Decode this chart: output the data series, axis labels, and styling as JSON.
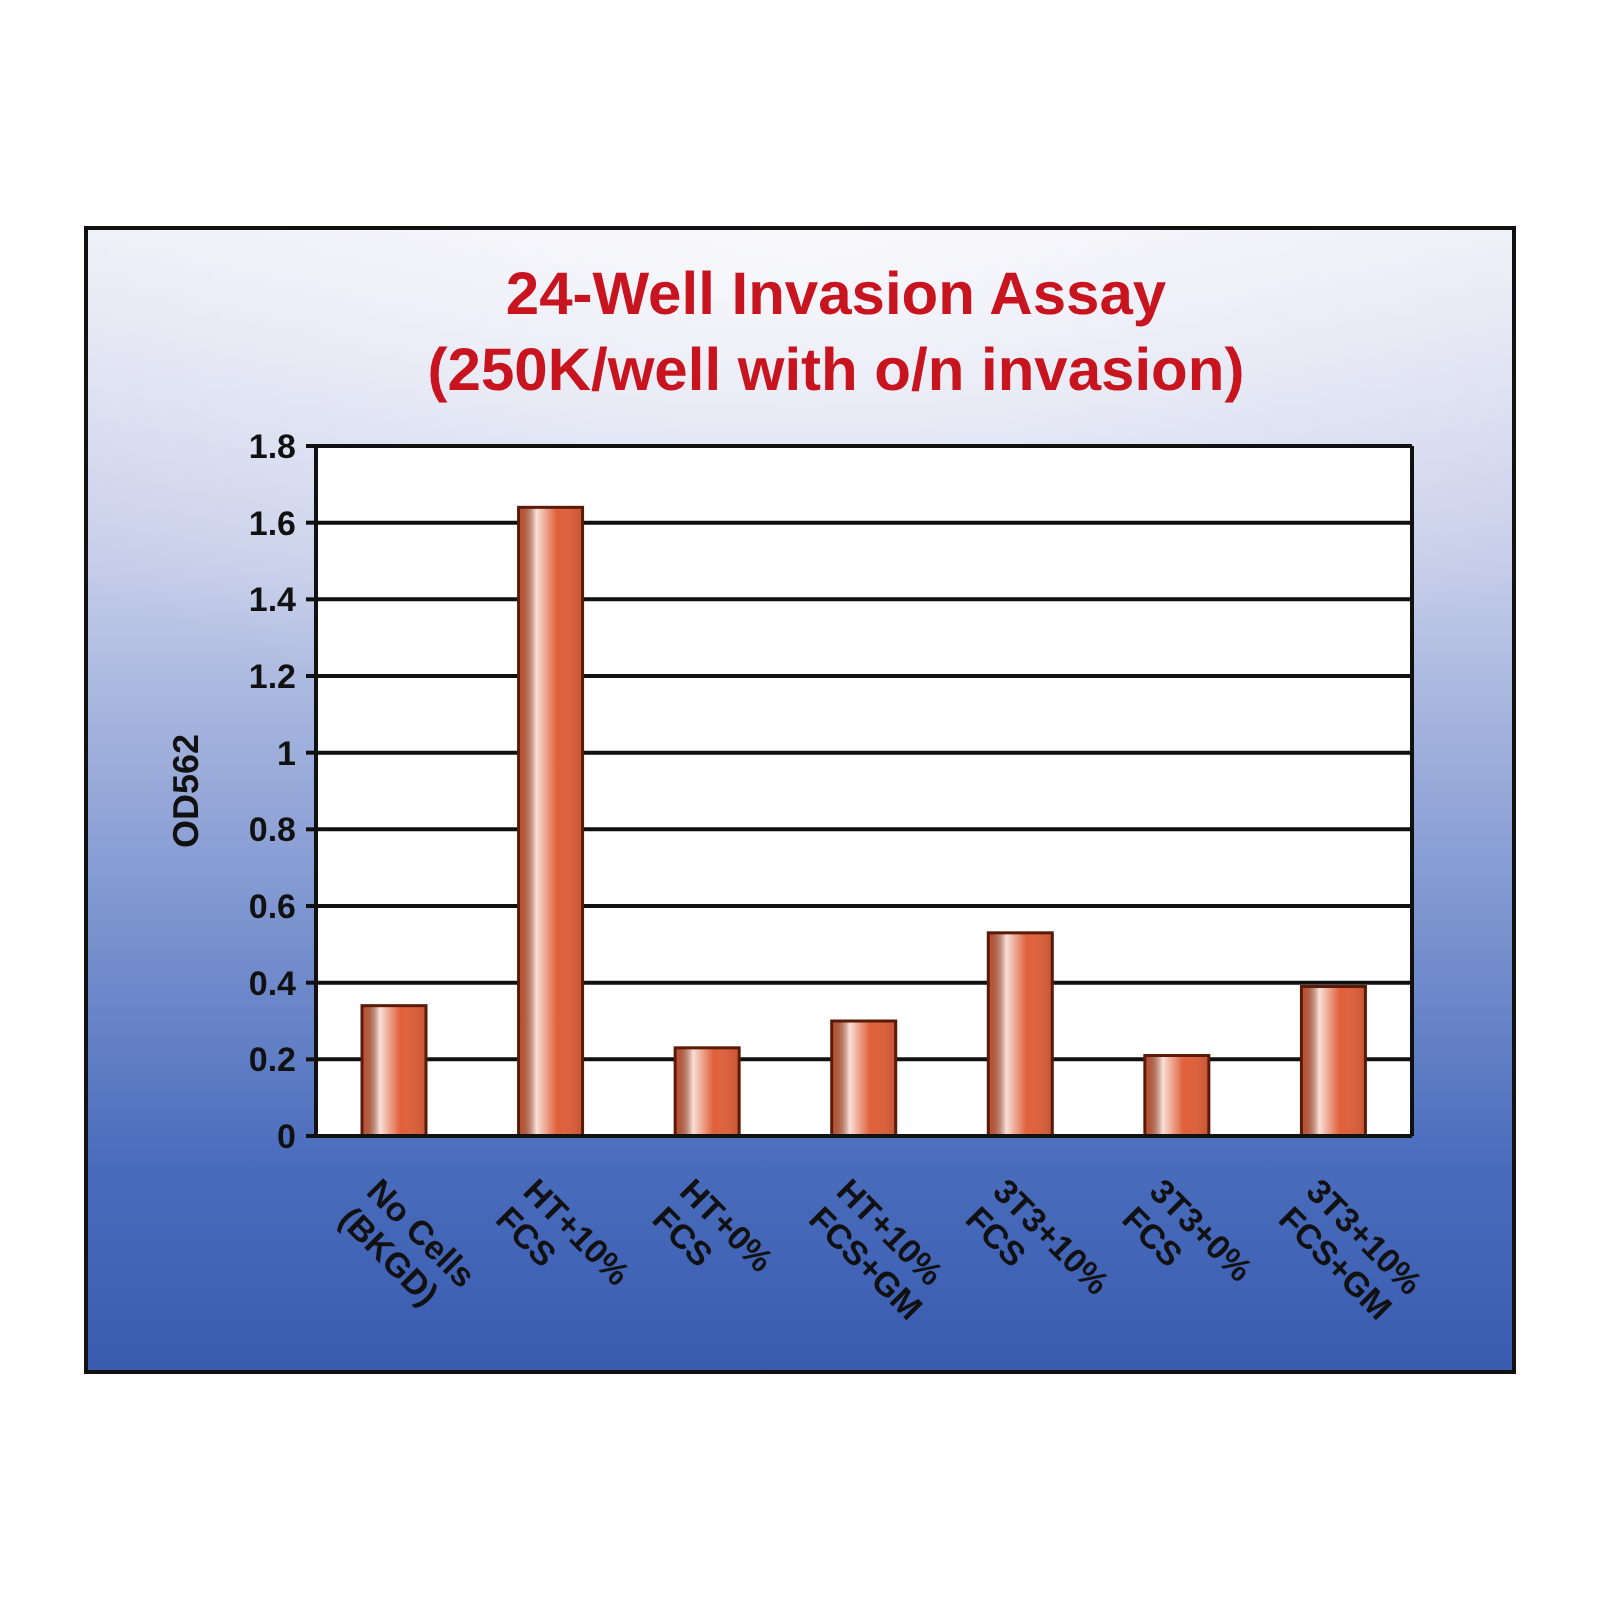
{
  "chart_data": {
    "type": "bar",
    "title": "24-Well Invasion Assay",
    "subtitle": "(250K/well with o/n invasion)",
    "ylabel": "OD562",
    "categories": [
      "No Cells\n(BKGD)",
      "HT+10%\nFCS",
      "HT+0%\nFCS",
      "HT+10%\nFCS+GM",
      "3T3+10%\nFCS",
      "3T3+0%\nFCS",
      "3T3+10%\nFCS+GM"
    ],
    "values": [
      0.34,
      1.64,
      0.23,
      0.3,
      0.53,
      0.21,
      0.39
    ],
    "color": "#e0603a",
    "ylim": [
      0,
      1.8
    ],
    "yticks": [
      0,
      0.2,
      0.4,
      0.6,
      0.8,
      1,
      1.2,
      1.4,
      1.6,
      1.8
    ],
    "grid": "y"
  }
}
